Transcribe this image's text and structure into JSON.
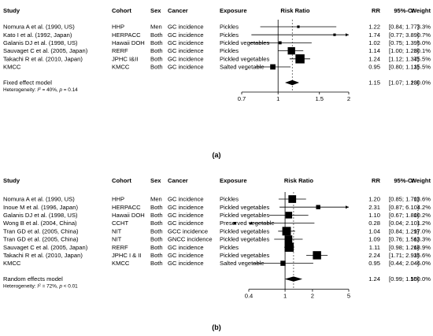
{
  "chart_data": [
    {
      "type": "forest",
      "panel_label": "(a)",
      "columns": {
        "study": "Study",
        "cohort": "Cohort",
        "sex": "Sex",
        "cancer": "Cancer",
        "exposure": "Exposure",
        "plot": "Risk Ratio",
        "rr": "RR",
        "ci": "95%-CI",
        "weight": "Weight"
      },
      "scale": "log",
      "xlim": [
        0.7,
        2
      ],
      "xticks": [
        0.7,
        1,
        1.5,
        2
      ],
      "xtick_labels": [
        "0.7",
        "1",
        "1.5",
        "2"
      ],
      "rows": [
        {
          "study": "Nomura A et al. (1990, US)",
          "cohort": "HHP",
          "sex": "Men",
          "cancer": "GC incidence",
          "exposure": "Pickles",
          "rr": 1.22,
          "lo": 0.84,
          "hi": 1.77,
          "rr_text": "1.22",
          "ci_text": "[0.84; 1.77]",
          "weight": 3.3,
          "weight_text": "3.3%"
        },
        {
          "study": "Kato I et al. (1992, Japan)",
          "cohort": "HERPACC",
          "sex": "Both",
          "cancer": "GC incidence",
          "exposure": "Pickles",
          "rr": 1.74,
          "lo": 0.77,
          "hi": 3.89,
          "rr_text": "1.74",
          "ci_text": "[0.77; 3.89]",
          "weight": 0.7,
          "weight_text": "0.7%"
        },
        {
          "study": "Galanis DJ et al. (1998, US)",
          "cohort": "Hawaii DOH",
          "sex": "Both",
          "cancer": "GC incidence",
          "exposure": "Pickled vegetables",
          "rr": 1.02,
          "lo": 0.75,
          "hi": 1.39,
          "rr_text": "1.02",
          "ci_text": "[0.75; 1.39]",
          "weight": 5.0,
          "weight_text": "5.0%"
        },
        {
          "study": "Sauvaget C et al. (2005, Japan)",
          "cohort": "RERF",
          "sex": "Both",
          "cancer": "GC incidence",
          "exposure": "Pickles",
          "rr": 1.14,
          "lo": 1.0,
          "hi": 1.28,
          "rr_text": "1.14",
          "ci_text": "[1.00; 1.28]",
          "weight": 30.1,
          "weight_text": "30.1%"
        },
        {
          "study": "Takachi R et al. (2010, Japan)",
          "cohort": "JPHC I&II",
          "sex": "Both",
          "cancer": "GC incidence",
          "exposure": "Pickled vegetables",
          "rr": 1.24,
          "lo": 1.12,
          "hi": 1.37,
          "rr_text": "1.24",
          "ci_text": "[1.12; 1.37]",
          "weight": 45.5,
          "weight_text": "45.5%"
        },
        {
          "study": "KMCC",
          "cohort": "KMCC",
          "sex": "Both",
          "cancer": "GC incidence",
          "exposure": "Salted vegetable",
          "rr": 0.95,
          "lo": 0.8,
          "hi": 1.13,
          "rr_text": "0.95",
          "ci_text": "[0.80; 1.13]",
          "weight": 15.5,
          "weight_text": "15.5%"
        }
      ],
      "summary": {
        "label": "Fixed effect model",
        "rr": 1.15,
        "lo": 1.07,
        "hi": 1.23,
        "rr_text": "1.15",
        "ci_text": "[1.07; 1.23]",
        "weight_text": "100.0%"
      },
      "heterogeneity": {
        "prefix": "Heterogeneity: ",
        "i2_label": "I",
        "i2_value": " = 40%, ",
        "p_label": "p",
        "p_value": " = 0.14"
      }
    },
    {
      "type": "forest",
      "panel_label": "(b)",
      "columns": {
        "study": "Study",
        "cohort": "Cohort",
        "sex": "Sex",
        "cancer": "Cancer",
        "exposure": "Exposure",
        "plot": "Risk Ratio",
        "rr": "RR",
        "ci": "95%-CI",
        "weight": "Weight"
      },
      "scale": "log",
      "xlim": [
        0.4,
        5
      ],
      "xticks": [
        0.4,
        1,
        2,
        5
      ],
      "xtick_labels": [
        "0.4",
        "1",
        "2",
        "5"
      ],
      "rows": [
        {
          "study": "Nomura A et al. (1990, US)",
          "cohort": "HHP",
          "sex": "Men",
          "cancer": "GC incidence",
          "exposure": "Pickles",
          "rr": 1.2,
          "lo": 0.85,
          "hi": 1.7,
          "rr_text": "1.20",
          "ci_text": "[0.85; 1.70]",
          "weight": 13.6,
          "weight_text": "13.6%"
        },
        {
          "study": "Inoue M et al. (1996, Japan)",
          "cohort": "HERPACC",
          "sex": "Both",
          "cancer": "GC incidence",
          "exposure": "Pickled vegetables",
          "rr": 2.31,
          "lo": 0.87,
          "hi": 6.1,
          "rr_text": "2.31",
          "ci_text": "[0.87; 6.10]",
          "weight": 4.2,
          "weight_text": "4.2%"
        },
        {
          "study": "Galanis DJ et al. (1998, US)",
          "cohort": "Hawaii DOH",
          "sex": "Both",
          "cancer": "GC incidence",
          "exposure": "Pickled vegetables",
          "rr": 1.1,
          "lo": 0.67,
          "hi": 1.8,
          "rr_text": "1.10",
          "ci_text": "[0.67; 1.80]",
          "weight": 10.2,
          "weight_text": "10.2%"
        },
        {
          "study": "Wong B et al. (2004, China)",
          "cohort": "CCHT",
          "sex": "Both",
          "cancer": "GC incidence",
          "exposure": "Preserved vegetable",
          "rr": 0.28,
          "lo": 0.04,
          "hi": 2.1,
          "rr_text": "0.28",
          "ci_text": "[0.04; 2.10]",
          "weight": 1.2,
          "weight_text": "1.2%"
        },
        {
          "study": "Tran GD et al. (2005, China)",
          "cohort": "NIT",
          "sex": "Both",
          "cancer": "GCC incidence",
          "exposure": "Pickled vegetables",
          "rr": 1.04,
          "lo": 0.84,
          "hi": 1.29,
          "rr_text": "1.04",
          "ci_text": "[0.84; 1.29]",
          "weight": 17.0,
          "weight_text": "17.0%"
        },
        {
          "study": "Tran GD et al. (2005, China)",
          "cohort": "NIT",
          "sex": "Both",
          "cancer": "GNCC incidence",
          "exposure": "Pickled vegetables",
          "rr": 1.09,
          "lo": 0.76,
          "hi": 1.56,
          "rr_text": "1.09",
          "ci_text": "[0.76; 1.56]",
          "weight": 13.3,
          "weight_text": "13.3%"
        },
        {
          "study": "Sauvaget C et al. (2005, Japan)",
          "cohort": "RERF",
          "sex": "Both",
          "cancer": "GC incidence",
          "exposure": "Pickles",
          "rr": 1.11,
          "lo": 0.98,
          "hi": 1.26,
          "rr_text": "1.11",
          "ci_text": "[0.98; 1.26]",
          "weight": 18.9,
          "weight_text": "18.9%"
        },
        {
          "study": "Takachi R et al. (2010, Japan)",
          "cohort": "JPHC I & II",
          "sex": "Both",
          "cancer": "GC incidence",
          "exposure": "Pickled vegetables",
          "rr": 2.24,
          "lo": 1.71,
          "hi": 2.93,
          "rr_text": "2.24",
          "ci_text": "[1.71; 2.93]",
          "weight": 15.6,
          "weight_text": "15.6%"
        },
        {
          "study": "KMCC",
          "cohort": "KMCC",
          "sex": "Both",
          "cancer": "GC incidence",
          "exposure": "Salted vegetable",
          "rr": 0.95,
          "lo": 0.44,
          "hi": 2.04,
          "rr_text": "0.95",
          "ci_text": "[0.44; 2.04]",
          "weight": 6.0,
          "weight_text": "6.0%"
        }
      ],
      "summary": {
        "label": "Random effects model",
        "rr": 1.24,
        "lo": 0.99,
        "hi": 1.55,
        "rr_text": "1.24",
        "ci_text": "[0.99; 1.55]",
        "weight_text": "100.0%"
      },
      "heterogeneity": {
        "prefix": "Heterogeneity: ",
        "i2_label": "I",
        "i2_value": " = 72%, ",
        "p_label": "p",
        "p_value": " < 0.01"
      }
    }
  ]
}
